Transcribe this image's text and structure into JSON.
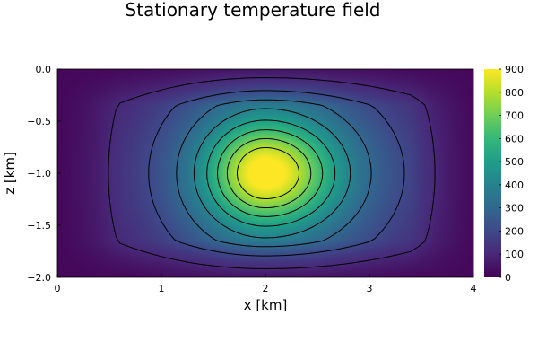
{
  "chart_data": {
    "type": "heatmap",
    "title": "Stationary temperature field",
    "xlabel": "x [km]",
    "ylabel": "z [km]",
    "xlim": [
      0,
      4
    ],
    "ylim": [
      -2.0,
      0.0
    ],
    "x_ticks": [
      "0",
      "1",
      "2",
      "3",
      "4"
    ],
    "x_tick_values": [
      0,
      1,
      2,
      3,
      4
    ],
    "y_ticks": [
      "0.0",
      "−0.5",
      "−1.0",
      "−1.5",
      "−2.0"
    ],
    "y_tick_values": [
      0.0,
      -0.5,
      -1.0,
      -1.5,
      -2.0
    ],
    "colorbar": {
      "range": [
        0,
        900
      ],
      "ticks": [
        "0",
        "100",
        "200",
        "300",
        "400",
        "500",
        "600",
        "700",
        "800",
        "900"
      ],
      "tick_values": [
        0,
        100,
        200,
        300,
        400,
        500,
        600,
        700,
        800,
        900
      ],
      "colormap": "viridis",
      "colors": [
        "#440154",
        "#482878",
        "#3e4989",
        "#31688e",
        "#26828e",
        "#1f9e89",
        "#35b779",
        "#6ece58",
        "#b5de2b",
        "#fde725"
      ]
    },
    "field": {
      "peak_value": 900,
      "peak_center": [
        2.0,
        -1.0
      ],
      "edge_value": 0
    },
    "contour_levels": [
      100,
      200,
      300,
      400,
      500,
      600,
      700,
      800
    ],
    "contour_color": "#000000",
    "grid": false,
    "legend": "none"
  }
}
